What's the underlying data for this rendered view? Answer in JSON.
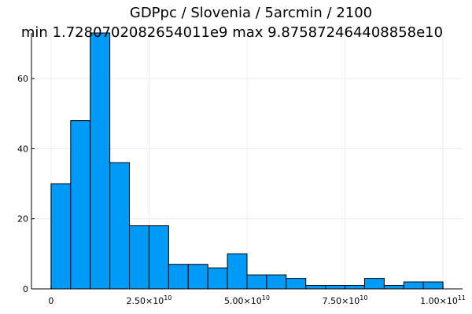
{
  "chart_data": {
    "type": "histogram",
    "title_lines": [
      "GDPpc / Slovenia / 5arcmin / 2100",
      "min 1.7280702082654011e9  max 9.875872464408858e10"
    ],
    "bin_width": 5000000000,
    "bins": [
      {
        "start": 0,
        "end": 5000000000,
        "count": 30
      },
      {
        "start": 5000000000,
        "end": 10000000000,
        "count": 48
      },
      {
        "start": 10000000000,
        "end": 15000000000,
        "count": 73
      },
      {
        "start": 15000000000,
        "end": 20000000000,
        "count": 36
      },
      {
        "start": 20000000000,
        "end": 25000000000,
        "count": 18
      },
      {
        "start": 25000000000,
        "end": 30000000000,
        "count": 18
      },
      {
        "start": 30000000000,
        "end": 35000000000,
        "count": 7
      },
      {
        "start": 35000000000,
        "end": 40000000000,
        "count": 7
      },
      {
        "start": 40000000000,
        "end": 45000000000,
        "count": 6
      },
      {
        "start": 45000000000,
        "end": 50000000000,
        "count": 10
      },
      {
        "start": 50000000000,
        "end": 55000000000,
        "count": 4
      },
      {
        "start": 55000000000,
        "end": 60000000000,
        "count": 4
      },
      {
        "start": 60000000000,
        "end": 65000000000,
        "count": 3
      },
      {
        "start": 65000000000,
        "end": 70000000000,
        "count": 1
      },
      {
        "start": 70000000000,
        "end": 75000000000,
        "count": 1
      },
      {
        "start": 75000000000,
        "end": 80000000000,
        "count": 1
      },
      {
        "start": 80000000000,
        "end": 85000000000,
        "count": 3
      },
      {
        "start": 85000000000,
        "end": 90000000000,
        "count": 1
      },
      {
        "start": 90000000000,
        "end": 95000000000,
        "count": 2
      },
      {
        "start": 95000000000,
        "end": 100000000000,
        "count": 2
      }
    ],
    "x_ticks": [
      {
        "value": 0,
        "label": "0"
      },
      {
        "value": 25000000000,
        "label": "2.50×10",
        "exp": "10"
      },
      {
        "value": 50000000000,
        "label": "5.00×10",
        "exp": "10"
      },
      {
        "value": 75000000000,
        "label": "7.50×10",
        "exp": "10"
      },
      {
        "value": 100000000000,
        "label": "1.00×10",
        "exp": "11"
      }
    ],
    "y_ticks": [
      {
        "value": 0,
        "label": "0"
      },
      {
        "value": 20,
        "label": "20"
      },
      {
        "value": 40,
        "label": "40"
      },
      {
        "value": 60,
        "label": "60"
      }
    ],
    "xlim": [
      -5000000000,
      105000000000
    ],
    "ylim": [
      0,
      73
    ],
    "xlabel": "",
    "ylabel": "",
    "grid": true,
    "legend": "none",
    "colors": {
      "bar_fill": "#009af9",
      "bar_stroke": "#000000",
      "grid": "#ececec",
      "axis": "#000000"
    }
  }
}
